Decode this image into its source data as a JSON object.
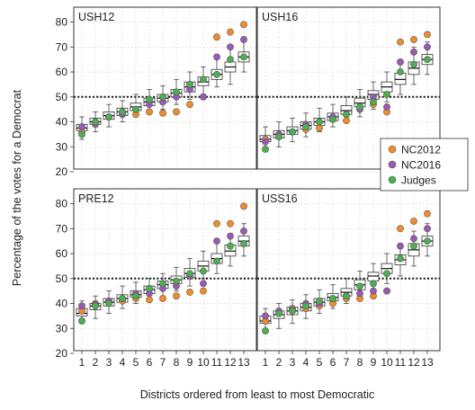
{
  "chart_data": {
    "type": "box-and-scatter",
    "xlabel": "Districts ordered from least to most Democratic",
    "ylabel": "Percentage of the votes for a Democrat",
    "categories": [
      "1",
      "2",
      "3",
      "4",
      "5",
      "6",
      "7",
      "8",
      "9",
      "10",
      "11",
      "12",
      "13"
    ],
    "y_ticks": [
      20,
      30,
      40,
      50,
      60,
      70,
      80
    ],
    "ylim": [
      20,
      82
    ],
    "reference_line": 50,
    "grid": true,
    "legend": {
      "placement": "right, between top and bottom panel rows",
      "entries": [
        {
          "name": "NC2012",
          "color": "#f28c28"
        },
        {
          "name": "NC2016",
          "color": "#9b59b6"
        },
        {
          "name": "Judges",
          "color": "#4caf50"
        }
      ]
    },
    "panels": [
      {
        "title": "USH12",
        "boxes": [
          {
            "lo": 33,
            "q1": 36.5,
            "med": 37.5,
            "q3": 39,
            "hi": 42
          },
          {
            "lo": 36,
            "q1": 39,
            "med": 40,
            "q3": 41.5,
            "hi": 44
          },
          {
            "lo": 38,
            "q1": 41,
            "med": 42.5,
            "q3": 44,
            "hi": 47
          },
          {
            "lo": 40,
            "q1": 42.5,
            "med": 44,
            "q3": 45.5,
            "hi": 48.5
          },
          {
            "lo": 42,
            "q1": 44.5,
            "med": 46,
            "q3": 47.5,
            "hi": 51
          },
          {
            "lo": 44,
            "q1": 46.5,
            "med": 48,
            "q3": 49.5,
            "hi": 53
          },
          {
            "lo": 45,
            "q1": 48,
            "med": 49.5,
            "q3": 51,
            "hi": 54.5
          },
          {
            "lo": 47,
            "q1": 50,
            "med": 51.5,
            "q3": 53,
            "hi": 57
          },
          {
            "lo": 49,
            "q1": 52,
            "med": 54,
            "q3": 56,
            "hi": 60
          },
          {
            "lo": 51,
            "q1": 54.5,
            "med": 56,
            "q3": 58,
            "hi": 62
          },
          {
            "lo": 54,
            "q1": 57,
            "med": 59,
            "q3": 61,
            "hi": 66
          },
          {
            "lo": 55,
            "q1": 60,
            "med": 62,
            "q3": 64,
            "hi": 70
          },
          {
            "lo": 60,
            "q1": 64,
            "med": 66,
            "q3": 68,
            "hi": 74
          }
        ],
        "NC2012": [
          36,
          40,
          42,
          43,
          43,
          44,
          43.5,
          44,
          47,
          50,
          74,
          76,
          79
        ],
        "NC2016": [
          38,
          39,
          42,
          43,
          45,
          47,
          48,
          50,
          53,
          50,
          66,
          70,
          73
        ],
        "Judges": [
          35,
          40,
          42,
          44,
          45,
          49,
          50,
          52,
          55,
          57,
          59,
          65,
          66
        ]
      },
      {
        "title": "USH16",
        "boxes": [
          {
            "lo": 28,
            "q1": 32,
            "med": 33,
            "q3": 34.5,
            "hi": 38
          },
          {
            "lo": 30,
            "q1": 33.5,
            "med": 35,
            "q3": 36.5,
            "hi": 40
          },
          {
            "lo": 32,
            "q1": 35,
            "med": 36.5,
            "q3": 38,
            "hi": 41.5
          },
          {
            "lo": 34,
            "q1": 37,
            "med": 38.5,
            "q3": 40,
            "hi": 43.5
          },
          {
            "lo": 36,
            "q1": 38.5,
            "med": 40,
            "q3": 41.5,
            "hi": 45.5
          },
          {
            "lo": 38,
            "q1": 40.5,
            "med": 42,
            "q3": 43.5,
            "hi": 47
          },
          {
            "lo": 40,
            "q1": 43,
            "med": 44.5,
            "q3": 46.5,
            "hi": 50
          },
          {
            "lo": 42,
            "q1": 46,
            "med": 47.5,
            "q3": 49.5,
            "hi": 53
          },
          {
            "lo": 45,
            "q1": 49,
            "med": 51,
            "q3": 52.5,
            "hi": 56
          },
          {
            "lo": 48,
            "q1": 52,
            "med": 54,
            "q3": 56,
            "hi": 60
          },
          {
            "lo": 51,
            "q1": 55,
            "med": 57,
            "q3": 59.5,
            "hi": 64
          },
          {
            "lo": 55,
            "q1": 59,
            "med": 61.5,
            "q3": 64,
            "hi": 70
          },
          {
            "lo": 59,
            "q1": 63,
            "med": 65,
            "q3": 67,
            "hi": 72
          }
        ],
        "NC2012": [
          33,
          34,
          36,
          37,
          37.5,
          41,
          40.5,
          46,
          47,
          44,
          72,
          73,
          75
        ],
        "NC2016": [
          32,
          35,
          36,
          39,
          40,
          42,
          43,
          45,
          50,
          46,
          64,
          68,
          70
        ],
        "Judges": [
          29,
          34,
          36,
          38,
          40,
          41,
          43,
          46,
          48,
          51,
          60,
          63,
          65
        ]
      },
      {
        "title": "PRE12",
        "boxes": [
          {
            "lo": 32,
            "q1": 35,
            "med": 36,
            "q3": 38,
            "hi": 41
          },
          {
            "lo": 34,
            "q1": 37.5,
            "med": 39,
            "q3": 40,
            "hi": 43
          },
          {
            "lo": 36,
            "q1": 39,
            "med": 40.5,
            "q3": 42,
            "hi": 45
          },
          {
            "lo": 38,
            "q1": 40.5,
            "med": 42,
            "q3": 43.5,
            "hi": 47
          },
          {
            "lo": 40,
            "q1": 42.5,
            "med": 43.5,
            "q3": 45,
            "hi": 48.5
          },
          {
            "lo": 41,
            "q1": 44,
            "med": 45.5,
            "q3": 47,
            "hi": 50
          },
          {
            "lo": 43,
            "q1": 46,
            "med": 47.5,
            "q3": 49,
            "hi": 52
          },
          {
            "lo": 45,
            "q1": 48,
            "med": 49.5,
            "q3": 51,
            "hi": 54.5
          },
          {
            "lo": 47,
            "q1": 50.5,
            "med": 52,
            "q3": 54,
            "hi": 58
          },
          {
            "lo": 50,
            "q1": 53,
            "med": 55,
            "q3": 57,
            "hi": 61
          },
          {
            "lo": 52,
            "q1": 56,
            "med": 58,
            "q3": 60,
            "hi": 65
          },
          {
            "lo": 55,
            "q1": 59,
            "med": 61,
            "q3": 63.5,
            "hi": 68
          },
          {
            "lo": 59,
            "q1": 63,
            "med": 65,
            "q3": 67,
            "hi": 72
          }
        ],
        "NC2012": [
          37,
          40,
          41,
          41,
          42,
          41.5,
          42,
          43,
          44.5,
          45,
          72,
          72,
          79
        ],
        "NC2016": [
          39,
          39.5,
          41,
          42,
          44,
          44,
          46,
          47,
          51,
          48,
          65,
          67,
          69
        ],
        "Judges": [
          33,
          39,
          40,
          42,
          43,
          46,
          48,
          49,
          52,
          53,
          57,
          63,
          64
        ]
      },
      {
        "title": "USS16",
        "boxes": [
          {
            "lo": 28,
            "q1": 32,
            "med": 33,
            "q3": 35,
            "hi": 38
          },
          {
            "lo": 30,
            "q1": 34,
            "med": 35.5,
            "q3": 37,
            "hi": 40
          },
          {
            "lo": 32,
            "q1": 35.5,
            "med": 37,
            "q3": 38.5,
            "hi": 41.5
          },
          {
            "lo": 34,
            "q1": 37,
            "med": 38.5,
            "q3": 40,
            "hi": 43.5
          },
          {
            "lo": 36,
            "q1": 39,
            "med": 40.5,
            "q3": 42,
            "hi": 45.5
          },
          {
            "lo": 38,
            "q1": 41,
            "med": 42.5,
            "q3": 44,
            "hi": 47.5
          },
          {
            "lo": 40,
            "q1": 43,
            "med": 44.5,
            "q3": 46,
            "hi": 50
          },
          {
            "lo": 42,
            "q1": 45.5,
            "med": 47.5,
            "q3": 49.5,
            "hi": 53
          },
          {
            "lo": 45,
            "q1": 49,
            "med": 51,
            "q3": 52.5,
            "hi": 56
          },
          {
            "lo": 48,
            "q1": 52,
            "med": 54,
            "q3": 56,
            "hi": 60
          },
          {
            "lo": 51,
            "q1": 55.5,
            "med": 57.5,
            "q3": 59.5,
            "hi": 64
          },
          {
            "lo": 55,
            "q1": 59,
            "med": 61.5,
            "q3": 64,
            "hi": 69
          },
          {
            "lo": 59,
            "q1": 63,
            "med": 65,
            "q3": 67,
            "hi": 72
          }
        ],
        "NC2012": [
          33,
          36,
          38,
          38,
          39,
          40,
          42,
          42,
          43,
          45,
          70,
          73,
          76
        ],
        "NC2016": [
          35,
          37,
          37.5,
          40,
          40,
          42,
          43,
          44,
          45,
          45,
          63,
          66,
          70
        ],
        "Judges": [
          29,
          36,
          37,
          39,
          41,
          42,
          43,
          47,
          48,
          52,
          58,
          63,
          65
        ]
      }
    ]
  }
}
